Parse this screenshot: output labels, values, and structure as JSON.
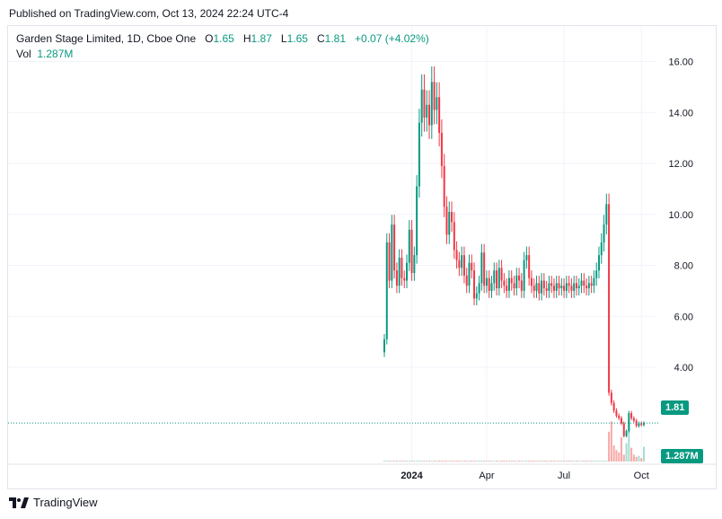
{
  "header": {
    "published": "Published on TradingView.com, Oct 13, 2024 22:24 UTC-4"
  },
  "legend": {
    "symbol": "Garden Stage Limited, 1D, Cboe One",
    "o_label": "O",
    "o": "1.65",
    "h_label": "H",
    "h": "1.87",
    "l_label": "L",
    "l": "1.65",
    "c_label": "C",
    "c": "1.81",
    "change": "+0.07 (+4.02%)",
    "vol_label": "Vol",
    "vol": "1.287M"
  },
  "badges": {
    "price": "1.81",
    "volume": "1.287M"
  },
  "footer": {
    "brand": "TradingView"
  },
  "colors": {
    "up": "#089981",
    "down": "#f23645",
    "grid": "#f0f3fa",
    "text": "#131722"
  },
  "chart_data": {
    "type": "candlestick",
    "y_ticks": [
      "16.00",
      "14.00",
      "12.00",
      "10.00",
      "8.00",
      "6.00",
      "4.00"
    ],
    "ylim": [
      0.3,
      16.3
    ],
    "x_ticks": [
      {
        "label": "2024",
        "index": 11
      },
      {
        "label": "Apr",
        "index": 41
      },
      {
        "label": "Jul",
        "index": 72
      },
      {
        "label": "Oct",
        "index": 103
      }
    ],
    "grid": true,
    "last_close": 1.81,
    "closes": [
      5.1,
      8.9,
      7.4,
      9.6,
      7.8,
      7.2,
      8.3,
      7.5,
      7.4,
      8.1,
      9.4,
      7.7,
      8.4,
      11.1,
      13.6,
      14.9,
      13.8,
      14.3,
      13.5,
      15.2,
      14.1,
      14.6,
      13.2,
      11.9,
      10.3,
      9.2,
      10.1,
      9.7,
      8.6,
      8.2,
      7.9,
      8.4,
      7.6,
      7.2,
      8.1,
      7.8,
      6.7,
      6.9,
      7.3,
      8.5,
      7.2,
      7.5,
      7.0,
      7.3,
      7.8,
      7.1,
      7.9,
      7.4,
      7.2,
      7.0,
      7.5,
      7.3,
      7.1,
      7.6,
      7.4,
      7.0,
      8.2,
      8.4,
      7.5,
      7.2,
      7.0,
      7.3,
      6.9,
      7.4,
      7.1,
      7.0,
      7.3,
      7.2,
      7.0,
      7.3,
      7.1,
      7.2,
      7.0,
      7.3,
      7.2,
      7.0,
      7.3,
      7.1,
      7.2,
      7.4,
      7.2,
      7.1,
      7.3,
      7.2,
      7.5,
      7.8,
      8.4,
      8.9,
      9.6,
      10.4,
      3.0,
      2.6,
      2.3,
      2.1,
      2.0,
      1.8,
      1.3,
      1.5,
      2.2,
      2.0,
      1.9,
      1.7,
      1.8,
      1.74,
      1.81
    ],
    "volumes": [
      0.05,
      0.04,
      0.03,
      0.02,
      0.03,
      0.02,
      0.02,
      0.02,
      0.02,
      0.03,
      0.03,
      0.02,
      0.02,
      0.04,
      0.05,
      0.04,
      0.03,
      0.03,
      0.02,
      0.03,
      0.02,
      0.02,
      0.02,
      0.02,
      0.02,
      0.02,
      0.02,
      0.02,
      0.02,
      0.02,
      0.02,
      0.02,
      0.02,
      0.02,
      0.02,
      0.02,
      0.02,
      0.02,
      0.02,
      0.02,
      0.02,
      0.02,
      0.02,
      0.02,
      0.02,
      0.02,
      0.02,
      0.02,
      0.02,
      0.02,
      0.02,
      0.02,
      0.02,
      0.02,
      0.02,
      0.02,
      0.02,
      0.02,
      0.02,
      0.02,
      0.02,
      0.02,
      0.02,
      0.02,
      0.02,
      0.02,
      0.02,
      0.02,
      0.02,
      0.02,
      0.02,
      0.02,
      0.02,
      0.02,
      0.02,
      0.02,
      0.02,
      0.02,
      0.02,
      0.02,
      0.02,
      0.02,
      0.02,
      0.02,
      0.02,
      0.02,
      0.02,
      0.02,
      0.03,
      0.05,
      2.6,
      3.5,
      1.4,
      1.0,
      0.8,
      2.1,
      0.6,
      1.6,
      3.6,
      1.2,
      0.6,
      0.4,
      0.5,
      0.3,
      1.287
    ]
  }
}
